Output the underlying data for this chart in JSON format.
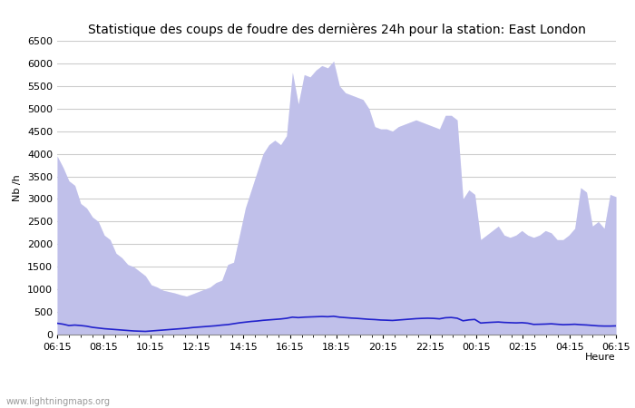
{
  "title": "Statistique des coups de foudre des dernières 24h pour la station: East London",
  "xlabel": "Heure",
  "ylabel": "Nb /h",
  "watermark": "www.lightningmaps.org",
  "ylim": [
    0,
    6500
  ],
  "yticks": [
    0,
    500,
    1000,
    1500,
    2000,
    2500,
    3000,
    3500,
    4000,
    4500,
    5000,
    5500,
    6000,
    6500
  ],
  "xtick_labels": [
    "06:15",
    "08:15",
    "10:15",
    "12:15",
    "14:15",
    "16:15",
    "18:15",
    "20:15",
    "22:15",
    "00:15",
    "02:15",
    "04:15",
    "06:15"
  ],
  "bg_color": "#ffffff",
  "plot_bg_color": "#ffffff",
  "grid_color": "#cccccc",
  "total_color": "#d8d8f8",
  "detected_color": "#aaaadd",
  "mean_color": "#2222cc",
  "title_fontsize": 10,
  "axis_fontsize": 8,
  "tick_fontsize": 8,
  "x_values": [
    0,
    1,
    2,
    3,
    4,
    5,
    6,
    7,
    8,
    9,
    10,
    11,
    12,
    13,
    14,
    15,
    16,
    17,
    18,
    19,
    20,
    21,
    22,
    23,
    24,
    25,
    26,
    27,
    28,
    29,
    30,
    31,
    32,
    33,
    34,
    35,
    36,
    37,
    38,
    39,
    40,
    41,
    42,
    43,
    44,
    45,
    46,
    47,
    48,
    49,
    50,
    51,
    52,
    53,
    54,
    55,
    56,
    57,
    58,
    59,
    60,
    61,
    62,
    63,
    64,
    65,
    66,
    67,
    68,
    69,
    70,
    71,
    72,
    73,
    74,
    75,
    76,
    77,
    78,
    79,
    80,
    81,
    82,
    83,
    84,
    85,
    86,
    87,
    88,
    89,
    90,
    91,
    92,
    93,
    94,
    95
  ],
  "total_foudre": [
    3950,
    3700,
    3400,
    3300,
    2900,
    2800,
    2600,
    2500,
    2200,
    2100,
    1800,
    1700,
    1550,
    1500,
    1400,
    1300,
    1100,
    1050,
    980,
    950,
    920,
    880,
    850,
    900,
    950,
    1000,
    1050,
    1150,
    1200,
    1550,
    1600,
    2200,
    2800,
    3200,
    3600,
    4000,
    4200,
    4300,
    4200,
    4400,
    5800,
    5100,
    5750,
    5700,
    5850,
    5950,
    5900,
    6050,
    5500,
    5350,
    5300,
    5250,
    5200,
    5000,
    4600,
    4550,
    4550,
    4500,
    4600,
    4650,
    4700,
    4750,
    4700,
    4650,
    4600,
    4550,
    4850,
    4850,
    4750,
    3000,
    3200,
    3100,
    2100,
    2200,
    2300,
    2400,
    2200,
    2150,
    2200,
    2300,
    2200,
    2150,
    2200,
    2300,
    2250,
    2100,
    2100,
    2200,
    2350,
    3250,
    3150,
    2400,
    2500,
    2350,
    3100,
    3050
  ],
  "detected_foudre": [
    3950,
    3700,
    3400,
    3300,
    2900,
    2800,
    2600,
    2500,
    2200,
    2100,
    1800,
    1700,
    1550,
    1500,
    1400,
    1300,
    1100,
    1050,
    980,
    950,
    920,
    880,
    850,
    900,
    950,
    1000,
    1050,
    1150,
    1200,
    1550,
    1600,
    2200,
    2800,
    3200,
    3600,
    4000,
    4200,
    4300,
    4200,
    4400,
    5800,
    5100,
    5750,
    5700,
    5850,
    5950,
    5900,
    6050,
    5500,
    5350,
    5300,
    5250,
    5200,
    5000,
    4600,
    4550,
    4550,
    4500,
    4600,
    4650,
    4700,
    4750,
    4700,
    4650,
    4600,
    4550,
    4850,
    4850,
    4750,
    3000,
    3200,
    3100,
    2100,
    2200,
    2300,
    2400,
    2200,
    2150,
    2200,
    2300,
    2200,
    2150,
    2200,
    2300,
    2250,
    2100,
    2100,
    2200,
    2350,
    3250,
    3150,
    2400,
    2500,
    2350,
    3100,
    3050
  ],
  "mean_stations": [
    250,
    230,
    200,
    210,
    200,
    185,
    160,
    145,
    130,
    120,
    110,
    100,
    90,
    80,
    75,
    70,
    80,
    90,
    100,
    110,
    120,
    130,
    140,
    155,
    165,
    175,
    185,
    195,
    210,
    220,
    240,
    260,
    275,
    290,
    300,
    315,
    325,
    335,
    345,
    360,
    385,
    375,
    385,
    390,
    395,
    400,
    395,
    405,
    385,
    375,
    365,
    358,
    348,
    338,
    332,
    322,
    318,
    312,
    322,
    332,
    342,
    352,
    358,
    362,
    358,
    348,
    372,
    378,
    362,
    305,
    325,
    335,
    255,
    265,
    272,
    278,
    268,
    263,
    258,
    263,
    252,
    225,
    228,
    232,
    238,
    228,
    218,
    222,
    228,
    218,
    212,
    202,
    192,
    188,
    188,
    192
  ]
}
